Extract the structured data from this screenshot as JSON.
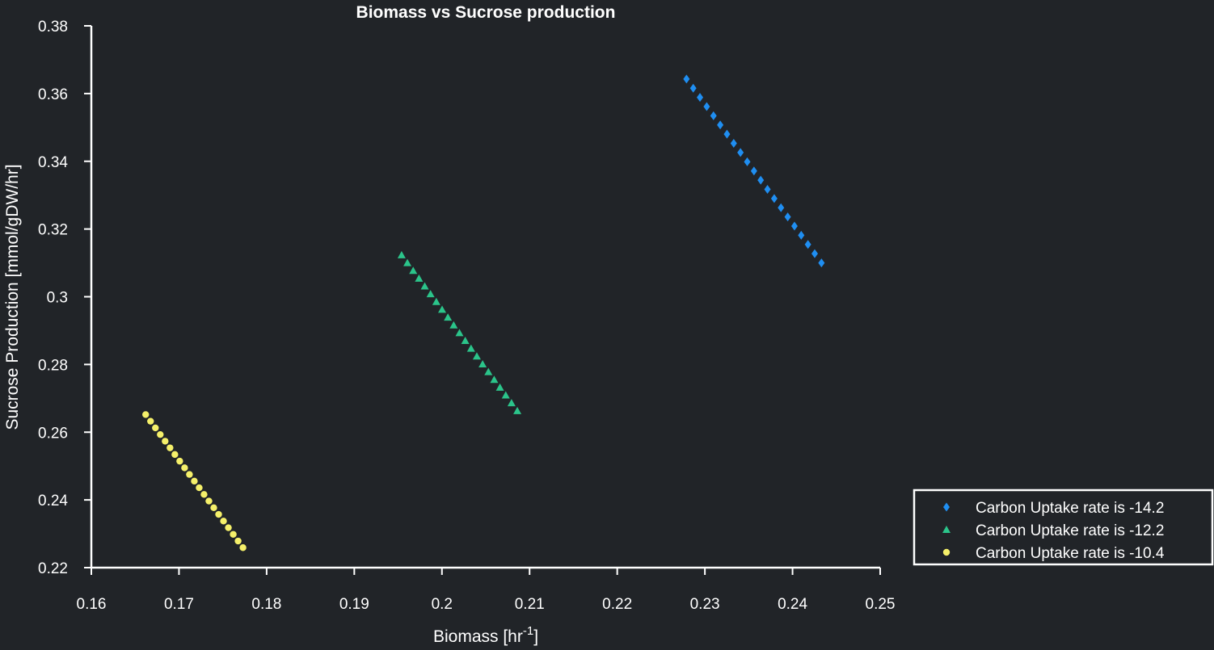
{
  "chart_data": {
    "type": "scatter",
    "title": "Biomass vs Sucrose production",
    "xlabel": "Biomass [hr",
    "xlabel_sup": "-1",
    "xlabel_suffix": "]",
    "ylabel": "Sucrose Production [mmol/gDW/hr]",
    "xlim": [
      0.16,
      0.25
    ],
    "ylim": [
      0.22,
      0.38
    ],
    "xticks": [
      0.16,
      0.17,
      0.18,
      0.19,
      0.2,
      0.21,
      0.22,
      0.23,
      0.24,
      0.25
    ],
    "xtick_labels": [
      "0.16",
      "0.17",
      "0.18",
      "0.19",
      "0.2",
      "0.21",
      "0.22",
      "0.23",
      "0.24",
      "0.25"
    ],
    "yticks": [
      0.22,
      0.24,
      0.26,
      0.28,
      0.3,
      0.32,
      0.34,
      0.36,
      0.38
    ],
    "ytick_labels": [
      "0.22",
      "0.24",
      "0.26",
      "0.28",
      "0.3",
      "0.32",
      "0.34",
      "0.36",
      "0.38"
    ],
    "grid": false,
    "legend_position": "bottom-right, outside",
    "series": [
      {
        "name": "Carbon Uptake rate is -14.2",
        "marker": "diamond",
        "color": "#1f8ef1",
        "x_start": 0.2279,
        "y_start": 0.3643,
        "x_end": 0.2433,
        "y_end": 0.31,
        "n": 21
      },
      {
        "name": "Carbon Uptake rate is -12.2",
        "marker": "triangle",
        "color": "#2bc48a",
        "x_start": 0.1954,
        "y_start": 0.3123,
        "x_end": 0.2086,
        "y_end": 0.2663,
        "n": 21
      },
      {
        "name": "Carbon Uptake rate is -10.4",
        "marker": "circle",
        "color": "#f5f06a",
        "x_start": 0.1662,
        "y_start": 0.2652,
        "x_end": 0.1773,
        "y_end": 0.2259,
        "n": 21
      }
    ]
  }
}
